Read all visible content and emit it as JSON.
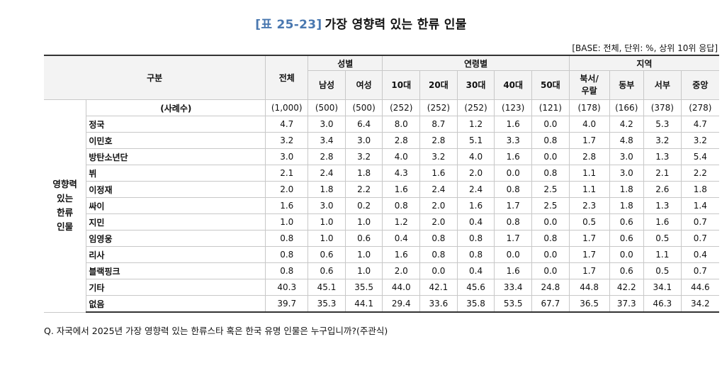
{
  "title": {
    "tag": "[표 25-23]",
    "text": "가장 영향력 있는 한류 인물"
  },
  "base_note": "[BASE: 전체, 단위: %, 상위 10위 응답]",
  "header": {
    "category": "구분",
    "total": "전체",
    "gender_group": "성별",
    "age_group": "연령별",
    "region_group": "지역",
    "gender": [
      "남성",
      "여성"
    ],
    "age": [
      "10대",
      "20대",
      "30대",
      "40대",
      "50대"
    ],
    "region": [
      "북서/\n우랄",
      "동부",
      "서부",
      "중앙"
    ]
  },
  "row_group_label": "영향력\n있는\n한류\n인물",
  "rows": [
    {
      "label": "(사례수)",
      "values": [
        "(1,000)",
        "(500)",
        "(500)",
        "(252)",
        "(252)",
        "(252)",
        "(123)",
        "(121)",
        "(178)",
        "(166)",
        "(378)",
        "(278)"
      ]
    },
    {
      "label": "정국",
      "values": [
        "4.7",
        "3.0",
        "6.4",
        "8.0",
        "8.7",
        "1.2",
        "1.6",
        "0.0",
        "4.0",
        "4.2",
        "5.3",
        "4.7"
      ]
    },
    {
      "label": "이민호",
      "values": [
        "3.2",
        "3.4",
        "3.0",
        "2.8",
        "2.8",
        "5.1",
        "3.3",
        "0.8",
        "1.7",
        "4.8",
        "3.2",
        "3.2"
      ]
    },
    {
      "label": "방탄소년단",
      "values": [
        "3.0",
        "2.8",
        "3.2",
        "4.0",
        "3.2",
        "4.0",
        "1.6",
        "0.0",
        "2.8",
        "3.0",
        "1.3",
        "5.4"
      ]
    },
    {
      "label": "뷔",
      "values": [
        "2.1",
        "2.4",
        "1.8",
        "4.3",
        "1.6",
        "2.0",
        "0.0",
        "0.8",
        "1.1",
        "3.0",
        "2.1",
        "2.2"
      ]
    },
    {
      "label": "이정재",
      "values": [
        "2.0",
        "1.8",
        "2.2",
        "1.6",
        "2.4",
        "2.4",
        "0.8",
        "2.5",
        "1.1",
        "1.8",
        "2.6",
        "1.8"
      ]
    },
    {
      "label": "싸이",
      "values": [
        "1.6",
        "3.0",
        "0.2",
        "0.8",
        "2.0",
        "1.6",
        "1.7",
        "2.5",
        "2.3",
        "1.8",
        "1.3",
        "1.4"
      ]
    },
    {
      "label": "지민",
      "values": [
        "1.0",
        "1.0",
        "1.0",
        "1.2",
        "2.0",
        "0.4",
        "0.8",
        "0.0",
        "0.5",
        "0.6",
        "1.6",
        "0.7"
      ]
    },
    {
      "label": "임영웅",
      "values": [
        "0.8",
        "1.0",
        "0.6",
        "0.4",
        "0.8",
        "0.8",
        "1.7",
        "0.8",
        "1.7",
        "0.6",
        "0.5",
        "0.7"
      ]
    },
    {
      "label": "리사",
      "values": [
        "0.8",
        "0.6",
        "1.0",
        "1.6",
        "0.8",
        "0.8",
        "0.0",
        "0.0",
        "1.7",
        "0.0",
        "1.1",
        "0.4"
      ]
    },
    {
      "label": "블랙핑크",
      "values": [
        "0.8",
        "0.6",
        "1.0",
        "2.0",
        "0.0",
        "0.4",
        "1.6",
        "0.0",
        "1.7",
        "0.6",
        "0.5",
        "0.7"
      ]
    },
    {
      "label": "기타",
      "values": [
        "40.3",
        "45.1",
        "35.5",
        "44.0",
        "42.1",
        "45.6",
        "33.4",
        "24.8",
        "44.8",
        "42.2",
        "34.1",
        "44.6"
      ]
    },
    {
      "label": "없음",
      "values": [
        "39.7",
        "35.3",
        "44.1",
        "29.4",
        "33.6",
        "35.8",
        "53.5",
        "67.7",
        "36.5",
        "37.3",
        "46.3",
        "34.2"
      ]
    }
  ],
  "footnote": "Q. 자국에서 2025년 가장 영향력 있는 한류스타 혹은 한국 유명 인물은 누구입니까?(주관식)"
}
